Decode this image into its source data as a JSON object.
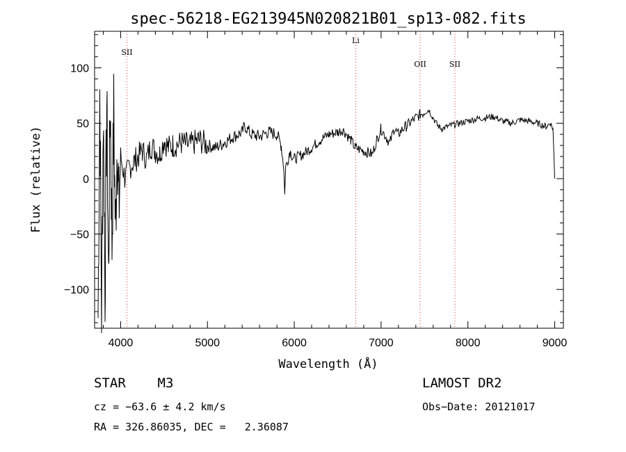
{
  "chart_data": {
    "type": "line",
    "title": "spec-56218-EG213945N020821B01_sp13-082.fits",
    "xlabel": "Wavelength (Å)",
    "ylabel": "Flux (relative)",
    "xlim": [
      3700,
      9100
    ],
    "ylim": [
      -135,
      133
    ],
    "xticks": [
      4000,
      5000,
      6000,
      7000,
      8000,
      9000
    ],
    "yticks": [
      -100,
      -50,
      0,
      50,
      100
    ],
    "x": [
      3740,
      3760,
      3780,
      3800,
      3820,
      3840,
      3860,
      3880,
      3900,
      3920,
      3940,
      3960,
      3980,
      4000,
      4050,
      4100,
      4150,
      4200,
      4250,
      4300,
      4350,
      4400,
      4450,
      4500,
      4550,
      4600,
      4700,
      4800,
      4900,
      5000,
      5100,
      5200,
      5300,
      5400,
      5430,
      5500,
      5600,
      5700,
      5800,
      5850,
      5880,
      5890,
      5900,
      5950,
      6000,
      6100,
      6200,
      6300,
      6400,
      6500,
      6560,
      6650,
      6700,
      6800,
      6900,
      6950,
      7000,
      7100,
      7150,
      7200,
      7250,
      7300,
      7400,
      7450,
      7500,
      7550,
      7600,
      7650,
      7700,
      7800,
      7900,
      8000,
      8100,
      8200,
      8300,
      8400,
      8500,
      8600,
      8700,
      8800,
      8900,
      8950,
      8980,
      9000
    ],
    "y": [
      -125,
      80,
      -120,
      60,
      -100,
      70,
      -90,
      75,
      -60,
      60,
      -50,
      40,
      -30,
      20,
      0,
      10,
      15,
      20,
      25,
      18,
      30,
      25,
      22,
      35,
      28,
      30,
      32,
      30,
      35,
      30,
      28,
      33,
      38,
      42,
      48,
      40,
      38,
      42,
      40,
      30,
      10,
      -15,
      10,
      25,
      18,
      22,
      28,
      35,
      40,
      42,
      44,
      35,
      28,
      25,
      22,
      35,
      45,
      32,
      45,
      40,
      45,
      48,
      55,
      58,
      60,
      62,
      55,
      48,
      45,
      48,
      50,
      52,
      54,
      55,
      56,
      52,
      50,
      53,
      52,
      50,
      47,
      50,
      45,
      0
    ],
    "emission_lines": [
      {
        "label": "SII",
        "x": 4072
      },
      {
        "label": "Li",
        "x": 6708
      },
      {
        "label": "OII",
        "x": 7450
      },
      {
        "label": "SII",
        "x": 7850
      }
    ],
    "grid": false,
    "line_color": "#000000",
    "marker_color": "#d83030"
  },
  "info": {
    "object_class": "STAR",
    "subclass": "M3",
    "survey": "LAMOST DR2",
    "cz": "cz = −63.6 ± 4.2 km/s",
    "obs_date": "Obs−Date: 20121017",
    "radec": "RA = 326.86035, DEC =   2.36087"
  }
}
